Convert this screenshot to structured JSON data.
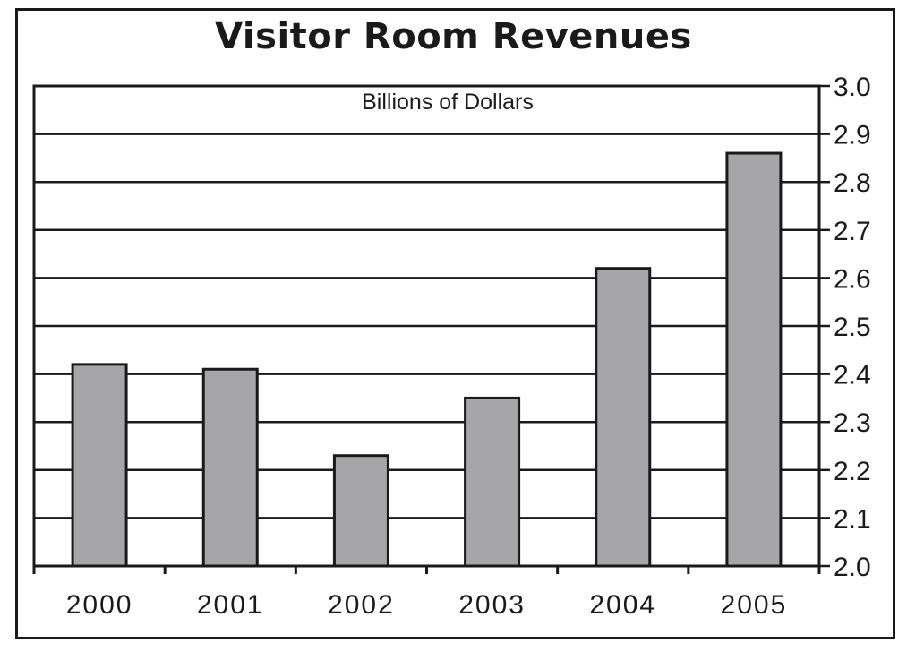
{
  "chart_data": {
    "type": "bar",
    "title": "Visitor Room Revenues",
    "unit_label": "Billions of Dollars",
    "categories": [
      "2000",
      "2001",
      "2002",
      "2003",
      "2004",
      "2005"
    ],
    "values": [
      2.42,
      2.41,
      2.23,
      2.35,
      2.62,
      2.86
    ],
    "ylim": [
      2.0,
      3.0
    ],
    "yticks": [
      "2.0",
      "2.1",
      "2.2",
      "2.3",
      "2.4",
      "2.5",
      "2.6",
      "2.7",
      "2.8",
      "2.9",
      "3.0"
    ],
    "y_axis_side": "right",
    "grid": true,
    "bar_color": "#a6a6a8",
    "line_color": "#1a1a1a"
  }
}
